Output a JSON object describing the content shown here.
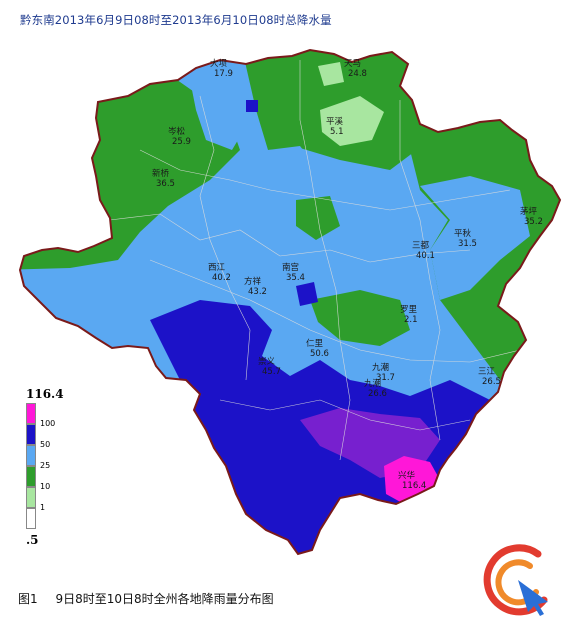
{
  "title": "黔东南2013年6月9日08时至2013年6月10日08时总降水量",
  "legend": {
    "max": "116.4",
    "min": ".5",
    "items": [
      {
        "label": "100",
        "color": "#ff17d8"
      },
      {
        "label": "50",
        "color": "#1c12c8"
      },
      {
        "label": "25",
        "color": "#5aa8f2"
      },
      {
        "label": "10",
        "color": "#2e9d2c"
      },
      {
        "label": "1",
        "color": "#a8e6a0"
      },
      {
        "label": "",
        "color": "#ffffff"
      }
    ]
  },
  "caption": {
    "fig": "图1",
    "text": "9日8时至10日8时全州各地降雨量分布图"
  },
  "colors": {
    "cat_100": "#ff17d8",
    "cat_50": "#1c12c8",
    "cat_25": "#5aa8f2",
    "cat_10": "#2e9d2c",
    "cat_1": "#a8e6a0",
    "border": "#7a1a1a",
    "title": "#1f3b8f"
  },
  "map_labels": [
    {
      "name": "天马",
      "value": "24.8"
    },
    {
      "name": "大坝",
      "value": "17.9"
    },
    {
      "name": "平溪",
      "value": "5.1"
    },
    {
      "name": "三都",
      "value": "40.1"
    },
    {
      "name": "九潮",
      "value": "26.6"
    },
    {
      "name": "岑松",
      "value": "25.9"
    },
    {
      "name": "新桥",
      "value": "36.5"
    },
    {
      "name": "南宫",
      "value": "35.4"
    },
    {
      "name": "西江",
      "value": "40.2"
    },
    {
      "name": "方祥",
      "value": "43.2"
    },
    {
      "name": "仁里",
      "value": "50.6"
    },
    {
      "name": "罗里",
      "value": "2.1"
    },
    {
      "name": "九潮",
      "value": "31.7"
    },
    {
      "name": "平秋",
      "value": "31.5"
    },
    {
      "name": "茅坪",
      "value": "35.2"
    },
    {
      "name": "三江",
      "value": "26.5"
    },
    {
      "name": "崇义",
      "value": "45.7"
    },
    {
      "name": "兴华",
      "value": "116.4"
    }
  ]
}
